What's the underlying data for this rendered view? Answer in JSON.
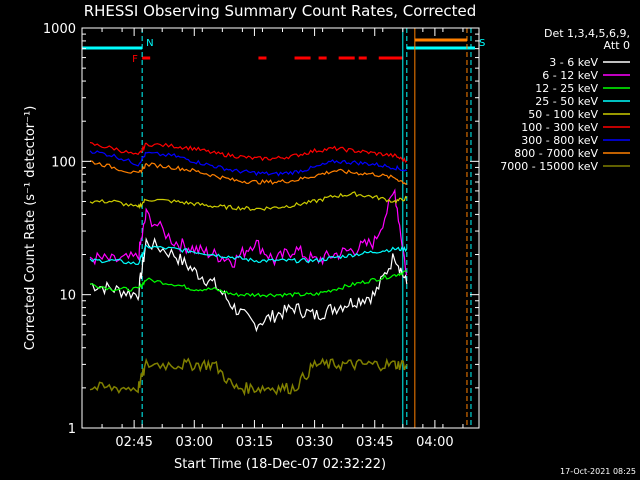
{
  "chart_data": {
    "type": "line",
    "title": "RHESSI Observing Summary Count Rates, Corrected",
    "xlabel": "Start Time (18-Dec-07 02:32:22)",
    "ylabel": "Corrected Count Rate (s⁻¹ detector⁻¹)",
    "y_scale": "log",
    "ylim": [
      1,
      1000
    ],
    "xlim_minutes": [
      "02:32",
      "04:11"
    ],
    "x_ticks": [
      "02:45",
      "03:00",
      "03:15",
      "03:30",
      "03:45",
      "04:00"
    ],
    "y_ticks": [
      "1",
      "10",
      "100",
      "1000"
    ],
    "grid": false,
    "legend_position": "right",
    "legend_header": [
      "Det 1,3,4,5,6,9,",
      "Att 0"
    ],
    "timestamp": "17-Oct-2021 08:25",
    "flags": [
      {
        "label": "N",
        "color": "#00ffff",
        "start": "02:32",
        "end": "02:47"
      },
      {
        "label": "F",
        "color": "#ff0000",
        "segments": [
          [
            "02:47",
            "02:49"
          ],
          [
            "03:16",
            "03:18"
          ],
          [
            "03:25",
            "03:29"
          ],
          [
            "03:31",
            "03:33"
          ],
          [
            "03:36",
            "03:40"
          ],
          [
            "03:41",
            "03:43"
          ],
          [
            "03:46",
            "03:52"
          ]
        ]
      },
      {
        "label": "S",
        "color": "#00ffff",
        "start": "03:53",
        "end": "04:10"
      },
      {
        "label": "",
        "color": "#ff8000",
        "start": "03:55",
        "end": "04:08"
      }
    ],
    "vlines": [
      {
        "time": "02:47",
        "color": "#00ffff",
        "style": "dashed"
      },
      {
        "time": "03:52",
        "color": "#00ffff",
        "style": "solid"
      },
      {
        "time": "03:53",
        "color": "#00ffff",
        "style": "dashed"
      },
      {
        "time": "03:55",
        "color": "#ff8000",
        "style": "solid"
      },
      {
        "time": "04:08",
        "color": "#ff8000",
        "style": "dashed"
      },
      {
        "time": "04:09",
        "color": "#00ffff",
        "style": "dashed"
      }
    ],
    "x": [
      "02:34",
      "02:40",
      "02:46",
      "02:48",
      "02:55",
      "03:00",
      "03:05",
      "03:10",
      "03:15",
      "03:20",
      "03:25",
      "03:30",
      "03:35",
      "03:40",
      "03:45",
      "03:50",
      "03:53"
    ],
    "series": [
      {
        "name": "3 - 6 keV",
        "color": "#ffffff",
        "values": [
          12,
          11,
          10,
          25,
          20,
          15,
          12,
          8,
          6,
          7,
          8,
          7,
          8,
          9,
          10,
          20,
          12
        ]
      },
      {
        "name": "6 - 12 keV",
        "color": "#ff00ff",
        "values": [
          19,
          18,
          19,
          40,
          25,
          22,
          20,
          18,
          25,
          18,
          22,
          18,
          20,
          22,
          25,
          60,
          14
        ]
      },
      {
        "name": "12 - 25 keV",
        "color": "#00ff00",
        "values": [
          12,
          11,
          11,
          13,
          12,
          11,
          11,
          10,
          10,
          10,
          10,
          10,
          11,
          12,
          13,
          14,
          15
        ]
      },
      {
        "name": "25 - 50 keV",
        "color": "#00ffff",
        "values": [
          18,
          18,
          17,
          23,
          22,
          21,
          20,
          19,
          18,
          18,
          18,
          18,
          19,
          20,
          21,
          22,
          22
        ]
      },
      {
        "name": "50 - 100 keV",
        "color": "#cccc00",
        "values": [
          50,
          50,
          45,
          52,
          50,
          48,
          46,
          45,
          44,
          45,
          47,
          50,
          55,
          57,
          54,
          50,
          53
        ]
      },
      {
        "name": "100 - 300 keV",
        "color": "#ff0000",
        "values": [
          135,
          125,
          110,
          135,
          130,
          125,
          115,
          110,
          105,
          105,
          110,
          120,
          125,
          120,
          115,
          110,
          100
        ]
      },
      {
        "name": "300 - 800 keV",
        "color": "#0000ff",
        "values": [
          120,
          110,
          95,
          115,
          110,
          100,
          92,
          85,
          82,
          80,
          83,
          90,
          100,
          98,
          95,
          90,
          85
        ]
      },
      {
        "name": "800 - 7000 keV",
        "color": "#ff8000",
        "values": [
          100,
          90,
          80,
          95,
          90,
          85,
          78,
          72,
          70,
          70,
          72,
          78,
          85,
          82,
          80,
          75,
          68
        ]
      },
      {
        "name": "7000 - 15000 keV",
        "color": "#808000",
        "values": [
          2,
          2,
          2,
          3,
          3,
          3,
          3,
          2,
          2,
          2,
          2,
          3,
          3,
          3,
          3,
          3,
          3
        ]
      }
    ]
  }
}
